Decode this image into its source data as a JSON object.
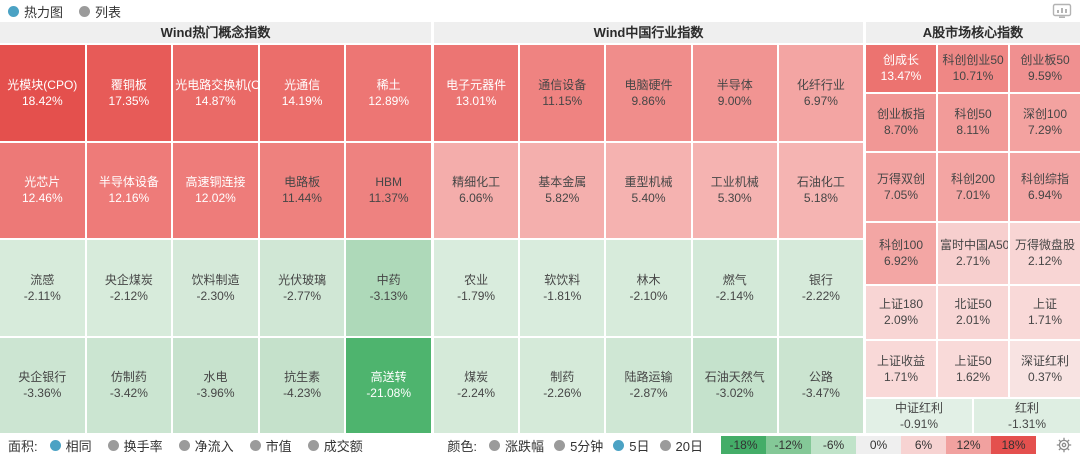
{
  "topbar": {
    "view_options": [
      {
        "label": "热力图",
        "selected": true
      },
      {
        "label": "列表",
        "selected": false
      }
    ]
  },
  "colors": {
    "radio_selected": "#4ba2c4",
    "radio_unselected": "#9b9b9b",
    "header_bg": "#efefef",
    "text_dark": "#464646",
    "text_light": "#ffffff"
  },
  "chart_data": {
    "type": "heatmap",
    "note": "treemap-style market heatmap; value = 5-day % change, color-coded red(+)/green(-)",
    "sections": [
      {
        "title": "Wind热门概念指数",
        "rows": [
          [
            {
              "n": "光模块(CPO)",
              "v": "18.42%",
              "c": "#e4504d",
              "w": true
            },
            {
              "n": "覆铜板",
              "v": "17.35%",
              "c": "#e75b58",
              "w": true
            },
            {
              "n": "光电路交换机(OC",
              "v": "14.87%",
              "c": "#ea6a67",
              "w": true
            },
            {
              "n": "光通信",
              "v": "14.19%",
              "c": "#eb6e6b",
              "w": true
            },
            {
              "n": "稀土",
              "v": "12.89%",
              "c": "#ed7674",
              "w": true
            }
          ],
          [
            {
              "n": "光芯片",
              "v": "12.46%",
              "c": "#ed7977",
              "w": true
            },
            {
              "n": "半导体设备",
              "v": "12.16%",
              "c": "#ee7b79",
              "w": true
            },
            {
              "n": "高速铜连接",
              "v": "12.02%",
              "c": "#ee7c7a",
              "w": true
            },
            {
              "n": "电路板",
              "v": "11.44%",
              "c": "#ee817e",
              "w": false
            },
            {
              "n": "HBM",
              "v": "11.37%",
              "c": "#ee8280",
              "w": false
            }
          ],
          [
            {
              "n": "流感",
              "v": "-2.11%",
              "c": "#d7ebdb",
              "w": false
            },
            {
              "n": "央企煤炭",
              "v": "-2.12%",
              "c": "#d7ebdb",
              "w": false
            },
            {
              "n": "饮料制造",
              "v": "-2.30%",
              "c": "#d5e9d9",
              "w": false
            },
            {
              "n": "光伏玻璃",
              "v": "-2.77%",
              "c": "#d0e7d5",
              "w": false
            },
            {
              "n": "中药",
              "v": "-3.13%",
              "c": "#aed9b9",
              "w": false
            }
          ],
          [
            {
              "n": "央企银行",
              "v": "-3.36%",
              "c": "#cce5d2",
              "w": false
            },
            {
              "n": "仿制药",
              "v": "-3.42%",
              "c": "#cbe5d1",
              "w": false
            },
            {
              "n": "水电",
              "v": "-3.96%",
              "c": "#c7e2cd",
              "w": false
            },
            {
              "n": "抗生素",
              "v": "-4.23%",
              "c": "#c5e1cb",
              "w": false
            },
            {
              "n": "高送转",
              "v": "-21.08%",
              "c": "#4eb46e",
              "w": true
            }
          ]
        ]
      },
      {
        "title": "Wind中国行业指数",
        "rows": [
          [
            {
              "n": "电子元器件",
              "v": "13.01%",
              "c": "#ec7573",
              "w": true
            },
            {
              "n": "通信设备",
              "v": "11.15%",
              "c": "#ef8381",
              "w": false
            },
            {
              "n": "电脑硬件",
              "v": "9.86%",
              "c": "#f08d8b",
              "w": false
            },
            {
              "n": "半导体",
              "v": "9.00%",
              "c": "#f19492",
              "w": false
            },
            {
              "n": "化纤行业",
              "v": "6.97%",
              "c": "#f3a5a3",
              "w": false
            }
          ],
          [
            {
              "n": "精细化工",
              "v": "6.06%",
              "c": "#f4adab",
              "w": false
            },
            {
              "n": "基本金属",
              "v": "5.82%",
              "c": "#f4afad",
              "w": false
            },
            {
              "n": "重型机械",
              "v": "5.40%",
              "c": "#f5b2b0",
              "w": false
            },
            {
              "n": "工业机械",
              "v": "5.30%",
              "c": "#f5b3b1",
              "w": false
            },
            {
              "n": "石油化工",
              "v": "5.18%",
              "c": "#f5b4b2",
              "w": false
            }
          ],
          [
            {
              "n": "农业",
              "v": "-1.79%",
              "c": "#d9ecdd",
              "w": false
            },
            {
              "n": "软饮料",
              "v": "-1.81%",
              "c": "#d9ecdd",
              "w": false
            },
            {
              "n": "林木",
              "v": "-2.10%",
              "c": "#d7ebdb",
              "w": false
            },
            {
              "n": "燃气",
              "v": "-2.14%",
              "c": "#d3e9d8",
              "w": false
            },
            {
              "n": "银行",
              "v": "-2.22%",
              "c": "#d6eada",
              "w": false
            }
          ],
          [
            {
              "n": "煤炭",
              "v": "-2.24%",
              "c": "#d5ead9",
              "w": false
            },
            {
              "n": "制药",
              "v": "-2.26%",
              "c": "#d5ead9",
              "w": false
            },
            {
              "n": "陆路运输",
              "v": "-2.87%",
              "c": "#cfe7d4",
              "w": false
            },
            {
              "n": "石油天然气",
              "v": "-3.02%",
              "c": "#c5e2cc",
              "w": false
            },
            {
              "n": "公路",
              "v": "-3.47%",
              "c": "#cbe4d0",
              "w": false
            }
          ]
        ]
      },
      {
        "title": "A股市场核心指数",
        "rows": [
          [
            {
              "n": "创成长",
              "v": "13.47%",
              "c": "#ec7370",
              "w": true
            },
            {
              "n": "科创创业50",
              "v": "10.71%",
              "c": "#ef8785",
              "w": false
            },
            {
              "n": "创业板50",
              "v": "9.59%",
              "c": "#f09090",
              "w": false
            }
          ],
          [
            {
              "n": "创业板指",
              "v": "8.70%",
              "c": "#f19795",
              "w": false
            },
            {
              "n": "科创50",
              "v": "8.11%",
              "c": "#f29b99",
              "w": false
            },
            {
              "n": "深创100",
              "v": "7.29%",
              "c": "#f3a2a0",
              "w": false
            }
          ],
          [
            {
              "n": "万得双创",
              "v": "7.05%",
              "c": "#f3a4a2",
              "w": false
            },
            {
              "n": "科创200",
              "v": "7.01%",
              "c": "#f3a5a3",
              "w": false
            },
            {
              "n": "科创综指",
              "v": "6.94%",
              "c": "#f3a5a4",
              "w": false
            }
          ],
          [
            {
              "n": "科创100",
              "v": "6.92%",
              "c": "#f3a6a4",
              "w": false
            },
            {
              "n": "富时中国A50",
              "v": "2.71%",
              "c": "#f7cfce",
              "w": false
            },
            {
              "n": "万得微盘股",
              "v": "2.12%",
              "c": "#f8d5d4",
              "w": false
            }
          ],
          [
            {
              "n": "上证180",
              "v": "2.09%",
              "c": "#f8d5d4",
              "w": false
            },
            {
              "n": "北证50",
              "v": "2.01%",
              "c": "#f8d6d5",
              "w": false
            },
            {
              "n": "上证",
              "v": "1.71%",
              "c": "#f9d9d8",
              "w": false
            }
          ],
          [
            {
              "n": "上证收益",
              "v": "1.71%",
              "c": "#f9d9d8",
              "w": false
            },
            {
              "n": "上证50",
              "v": "1.62%",
              "c": "#f9dad9",
              "w": false
            },
            {
              "n": "深证红利",
              "v": "0.37%",
              "c": "#f8e3e2",
              "w": false
            }
          ],
          [
            {
              "n": "中证红利",
              "v": "-0.91%",
              "c": "#e2f0e6",
              "w": false
            },
            {
              "n": "红利",
              "v": "-1.31%",
              "c": "#deeee2",
              "w": false
            }
          ]
        ]
      }
    ]
  },
  "footer": {
    "area_label": "面积:",
    "area_options": [
      {
        "label": "相同",
        "selected": true
      },
      {
        "label": "换手率",
        "selected": false
      },
      {
        "label": "净流入",
        "selected": false
      },
      {
        "label": "市值",
        "selected": false
      },
      {
        "label": "成交额",
        "selected": false
      }
    ],
    "color_label": "颜色:",
    "color_options": [
      {
        "label": "涨跌幅",
        "selected": false
      },
      {
        "label": "5分钟",
        "selected": false
      },
      {
        "label": "5日",
        "selected": true
      },
      {
        "label": "20日",
        "selected": false
      }
    ],
    "legend": [
      {
        "label": "-18%",
        "color": "#44ad68"
      },
      {
        "label": "-12%",
        "color": "#84c897"
      },
      {
        "label": "-6%",
        "color": "#c0e3c9"
      },
      {
        "label": "0%",
        "color": "#efefef"
      },
      {
        "label": "6%",
        "color": "#f7d3d2"
      },
      {
        "label": "12%",
        "color": "#f1a19f"
      },
      {
        "label": "18%",
        "color": "#e4504e"
      }
    ]
  }
}
